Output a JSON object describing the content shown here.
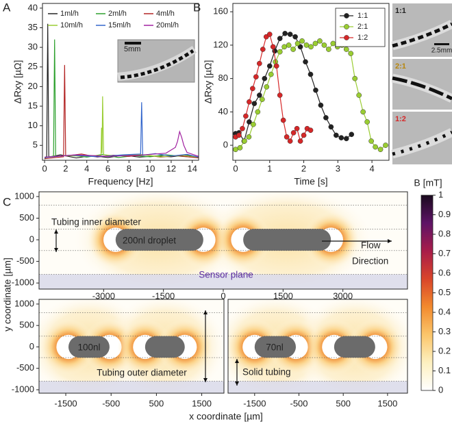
{
  "chart_data": [
    {
      "type": "line",
      "panel_label": "A",
      "xlabel": "Frequency [Hz]",
      "ylabel": "ΔRxy [µΩ]",
      "xlim": [
        -0.2,
        14.6
      ],
      "ylim": [
        1.2,
        41.2
      ],
      "xticks": [
        0,
        2,
        4,
        6,
        8,
        10,
        12,
        14
      ],
      "yticks": [
        5,
        10,
        15,
        20,
        25,
        30,
        35,
        40
      ],
      "legend": "upper right",
      "inset_scale": "5mm",
      "series": [
        {
          "name": "1ml/h",
          "color": "#222222",
          "x": [
            0,
            0.2,
            0.3,
            0.4,
            1.5,
            3,
            4.5,
            6,
            7.5,
            9,
            10.5,
            12,
            13.5,
            14.6
          ],
          "values": [
            1.5,
            2.2,
            36,
            2,
            2.6,
            1.8,
            2.4,
            1.9,
            2.5,
            2,
            2.3,
            2.1,
            2.6,
            1.8
          ]
        },
        {
          "name": "2ml/h",
          "color": "#2ca02c",
          "x": [
            0,
            0.85,
            0.95,
            1.05,
            2.5,
            4,
            5.5,
            7,
            8.5,
            10,
            11.5,
            13,
            14.6
          ],
          "values": [
            1.8,
            2.3,
            32,
            2.2,
            2.5,
            2,
            2.7,
            1.9,
            2.4,
            2.1,
            2.6,
            2.2,
            1.9
          ]
        },
        {
          "name": "4ml/h",
          "color": "#b22222",
          "x": [
            0,
            1.8,
            1.9,
            2,
            3.5,
            5,
            6.5,
            8,
            9.5,
            11,
            12.5,
            14.6
          ],
          "values": [
            1.6,
            2.1,
            25.5,
            2.3,
            2.8,
            2,
            2.5,
            2.2,
            2.6,
            2,
            2.4,
            1.8
          ]
        },
        {
          "name": "10ml/h",
          "color": "#9acd32",
          "x": [
            0,
            2,
            4,
            5.35,
            5.4,
            5.45,
            5.5,
            5.6,
            7,
            9,
            11,
            13,
            14.6
          ],
          "values": [
            2,
            2.4,
            2.2,
            2.5,
            9.5,
            3,
            17.5,
            2.6,
            2.3,
            2.7,
            2.1,
            2.5,
            2
          ]
        },
        {
          "name": "15ml/h",
          "color": "#3366cc",
          "x": [
            0,
            2.5,
            5,
            7.5,
            9.1,
            9.2,
            9.3,
            10.5,
            12,
            13.5,
            14.6
          ],
          "values": [
            1.9,
            2.5,
            2.1,
            2.6,
            2.8,
            16,
            2.5,
            2.9,
            2.3,
            2.7,
            2
          ]
        },
        {
          "name": "20ml/h",
          "color": "#a020a0",
          "x": [
            0,
            3,
            6,
            9,
            11.5,
            12.4,
            12.6,
            12.8,
            13,
            13.2,
            13.5,
            14.6
          ],
          "values": [
            2,
            2.6,
            2.2,
            2.5,
            3,
            4.5,
            6,
            8.5,
            7,
            5,
            3.2,
            2.2
          ]
        }
      ]
    },
    {
      "type": "line",
      "panel_label": "B",
      "xlabel": "Time [s]",
      "ylabel": "ΔRxy [µΩ]",
      "markers": true,
      "legend": "upper right",
      "xlim": [
        -0.08,
        4.5
      ],
      "ylim": [
        -18,
        170
      ],
      "xticks": [
        0,
        1,
        2,
        3,
        4
      ],
      "yticks": [
        0,
        40,
        80,
        120,
        160
      ],
      "series": [
        {
          "name": "1:1",
          "color": "#222222",
          "x": [
            0,
            0.1,
            0.25,
            0.4,
            0.55,
            0.7,
            0.85,
            1.0,
            1.15,
            1.3,
            1.45,
            1.6,
            1.75,
            1.9,
            2.05,
            2.2,
            2.35,
            2.5,
            2.65,
            2.8,
            2.95,
            3.1,
            3.25,
            3.4
          ],
          "values": [
            14,
            15,
            5,
            28,
            50,
            60,
            80,
            95,
            113,
            128,
            134,
            133,
            130,
            118,
            100,
            85,
            66,
            48,
            33,
            22,
            12,
            9,
            8,
            13
          ]
        },
        {
          "name": "2:1",
          "color": "#9acd32",
          "x": [
            0,
            0.13,
            0.26,
            0.39,
            0.52,
            0.65,
            0.78,
            0.91,
            1.04,
            1.17,
            1.3,
            1.43,
            1.56,
            1.69,
            1.82,
            1.95,
            2.08,
            2.21,
            2.34,
            2.47,
            2.6,
            2.73,
            2.86,
            2.99,
            3.12,
            3.25,
            3.38,
            3.5,
            3.62,
            3.74,
            3.86,
            3.98,
            4.1,
            4.25,
            4.4
          ],
          "values": [
            -5,
            -3,
            5,
            10,
            25,
            40,
            55,
            70,
            85,
            100,
            112,
            118,
            120,
            115,
            122,
            125,
            120,
            118,
            122,
            125,
            120,
            115,
            122,
            118,
            120,
            115,
            110,
            80,
            60,
            40,
            28,
            5,
            -2,
            -5,
            0
          ]
        },
        {
          "name": "1:2",
          "color": "#d62728",
          "x": [
            0,
            0.1,
            0.2,
            0.3,
            0.4,
            0.5,
            0.6,
            0.7,
            0.8,
            0.9,
            1.0,
            1.1,
            1.2,
            1.3,
            1.4,
            1.5,
            1.6,
            1.7,
            1.8,
            1.9,
            2.0,
            2.1,
            2.2
          ],
          "values": [
            10,
            12,
            20,
            35,
            52,
            68,
            82,
            98,
            115,
            130,
            133,
            118,
            95,
            60,
            30,
            10,
            5,
            15,
            20,
            5,
            12,
            20,
            18
          ]
        }
      ],
      "images": [
        {
          "label": "1:1",
          "color": "#222222",
          "scale": "2.5mm"
        },
        {
          "label": "2:1",
          "color": "#b8860b"
        },
        {
          "label": "1:2",
          "color": "#d62728"
        }
      ]
    },
    {
      "type": "contour",
      "panel_label": "C",
      "xlabel": "x coordinate [µm]",
      "ylabel": "y coordinate [µm]",
      "panels": [
        {
          "xlim": [
            -4620,
            4620
          ],
          "ylim": [
            -1140,
            1110
          ],
          "xticks": [
            -3000,
            -1500,
            0,
            1500,
            3000
          ],
          "yticks": [
            1000,
            500,
            0,
            -500,
            -1000
          ],
          "annotations": [
            "Tubing inner diameter",
            "200nl droplet",
            "Flow",
            "Direction",
            "Sensor plane"
          ]
        },
        {
          "xlim": [
            -2090,
            1990
          ],
          "ylim": [
            -1080,
            1110
          ],
          "xticks": [
            -1500,
            -500,
            500,
            1500
          ],
          "yticks": [
            1000,
            500,
            0,
            -500,
            -1000
          ],
          "annotations": [
            "100nl",
            "Tubing outer diameter"
          ]
        },
        {
          "xlim": [
            -2100,
            1950
          ],
          "ylim": [
            -1080,
            1110
          ],
          "xticks": [
            -1500,
            -500,
            500,
            1500
          ],
          "annotations": [
            "70nl",
            "Solid tubing"
          ]
        }
      ],
      "colorbar": {
        "label": "B [mT]",
        "lim": [
          0,
          1
        ],
        "ticks": [
          0,
          0.1,
          0.2,
          0.3,
          0.4,
          0.5,
          0.6,
          0.7,
          0.8,
          0.9,
          1
        ],
        "colors": [
          "#ffffff",
          "#fdf0c0",
          "#fbc56a",
          "#f28a2e",
          "#d9452a",
          "#a81d4a",
          "#5e1466",
          "#1a0a1e"
        ]
      }
    }
  ]
}
